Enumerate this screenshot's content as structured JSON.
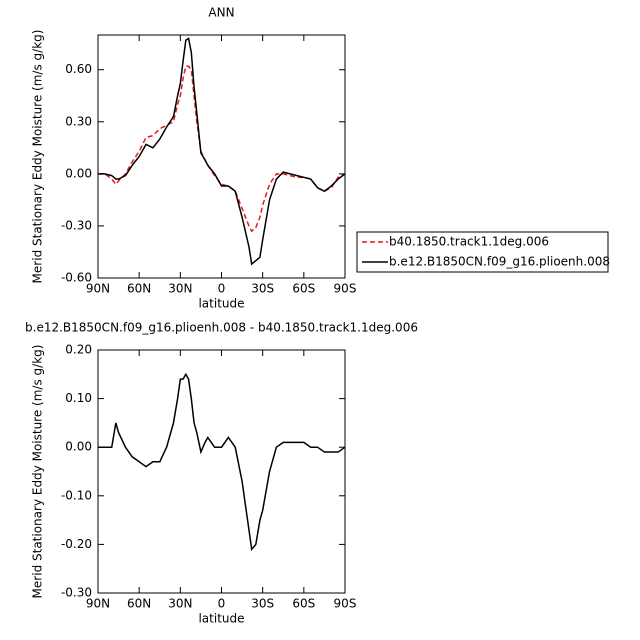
{
  "chart_data": [
    {
      "type": "line",
      "title": "ANN",
      "xlabel": "latitude",
      "ylabel": "Merid Stationary Eddy Moisture (m/s g/kg)",
      "x": [
        90,
        85,
        80,
        77,
        75,
        70,
        65,
        60,
        55,
        50,
        45,
        40,
        35,
        32,
        30,
        28,
        26,
        24,
        22,
        20,
        18,
        15,
        12,
        10,
        5,
        0,
        -5,
        -10,
        -15,
        -20,
        -22,
        -25,
        -28,
        -30,
        -35,
        -40,
        -45,
        -50,
        -55,
        -60,
        -65,
        -70,
        -75,
        -80,
        -85,
        -90
      ],
      "series": [
        {
          "name": "b40.1850.track1.1deg.006",
          "color": "#e41a1c",
          "dash": true,
          "values": [
            0,
            0,
            -0.03,
            -0.06,
            -0.04,
            0.0,
            0.07,
            0.13,
            0.21,
            0.22,
            0.26,
            0.28,
            0.3,
            0.4,
            0.45,
            0.55,
            0.62,
            0.62,
            0.6,
            0.45,
            0.3,
            0.13,
            0.08,
            0.05,
            -0.01,
            -0.06,
            -0.07,
            -0.1,
            -0.2,
            -0.3,
            -0.33,
            -0.31,
            -0.25,
            -0.18,
            -0.06,
            0.0,
            0.0,
            -0.01,
            -0.02,
            -0.02,
            -0.03,
            -0.08,
            -0.1,
            -0.08,
            -0.02,
            0.0
          ]
        },
        {
          "name": "b.e12.B1850CN.f09_g16.plioenh.008",
          "color": "#000000",
          "dash": false,
          "values": [
            0,
            0,
            -0.01,
            -0.03,
            -0.03,
            -0.01,
            0.05,
            0.1,
            0.17,
            0.15,
            0.2,
            0.27,
            0.33,
            0.45,
            0.52,
            0.65,
            0.77,
            0.78,
            0.7,
            0.5,
            0.35,
            0.12,
            0.08,
            0.05,
            0.0,
            -0.07,
            -0.07,
            -0.1,
            -0.25,
            -0.42,
            -0.52,
            -0.5,
            -0.48,
            -0.38,
            -0.15,
            -0.03,
            0.01,
            0.0,
            -0.01,
            -0.02,
            -0.03,
            -0.08,
            -0.1,
            -0.07,
            -0.03,
            0.0
          ]
        }
      ],
      "xlim": [
        90,
        -90
      ],
      "xticks": [
        {
          "value": 90,
          "label": "90N"
        },
        {
          "value": 60,
          "label": "60N"
        },
        {
          "value": 30,
          "label": "30N"
        },
        0,
        {
          "value": -30,
          "label": "30S"
        },
        {
          "value": -60,
          "label": "60S"
        },
        {
          "value": -90,
          "label": "90S"
        }
      ],
      "ylim": [
        -0.6,
        0.8
      ],
      "yticks": [
        {
          "value": -0.6,
          "label": "-0.60"
        },
        {
          "value": -0.3,
          "label": "-0.30"
        },
        {
          "value": 0,
          "label": "0.00"
        },
        {
          "value": 0.3,
          "label": "0.30"
        },
        {
          "value": 0.6,
          "label": "0.60"
        }
      ],
      "legend": "right"
    },
    {
      "type": "line",
      "title": "b.e12.B1850CN.f09_g16.plioenh.008 - b40.1850.track1.1deg.006",
      "xlabel": "latitude",
      "ylabel": "Merid Stationary Eddy Moisture (m/s g/kg)",
      "x": [
        90,
        85,
        80,
        77,
        75,
        70,
        65,
        60,
        55,
        50,
        45,
        40,
        35,
        32,
        30,
        28,
        26,
        24,
        22,
        20,
        18,
        15,
        12,
        10,
        5,
        0,
        -5,
        -10,
        -15,
        -20,
        -22,
        -25,
        -28,
        -30,
        -35,
        -40,
        -45,
        -50,
        -55,
        -60,
        -65,
        -70,
        -75,
        -80,
        -85,
        -90
      ],
      "series": [
        {
          "color": "#000000",
          "dash": false,
          "values": [
            0,
            0,
            0,
            0.05,
            0.03,
            0,
            -0.02,
            -0.03,
            -0.04,
            -0.03,
            -0.03,
            0,
            0.05,
            0.1,
            0.14,
            0.14,
            0.15,
            0.14,
            0.1,
            0.05,
            0.03,
            -0.01,
            0.01,
            0.02,
            0,
            0,
            0.02,
            0,
            -0.07,
            -0.17,
            -0.21,
            -0.2,
            -0.15,
            -0.13,
            -0.05,
            0,
            0.01,
            0.01,
            0.01,
            0.01,
            0,
            0,
            -0.01,
            -0.01,
            -0.01,
            0
          ]
        }
      ],
      "xlim": [
        90,
        -90
      ],
      "xticks": [
        {
          "value": 90,
          "label": "90N"
        },
        {
          "value": 60,
          "label": "60N"
        },
        {
          "value": 30,
          "label": "30N"
        },
        0,
        {
          "value": -30,
          "label": "30S"
        },
        {
          "value": -60,
          "label": "60S"
        },
        {
          "value": -90,
          "label": "90S"
        }
      ],
      "ylim": [
        -0.3,
        0.2
      ],
      "yticks": [
        {
          "value": -0.3,
          "label": "-0.30"
        },
        {
          "value": -0.2,
          "label": "-0.20"
        },
        {
          "value": -0.1,
          "label": "-0.10"
        },
        {
          "value": 0,
          "label": "0.00"
        },
        {
          "value": 0.1,
          "label": "0.10"
        },
        {
          "value": 0.2,
          "label": "0.20"
        }
      ]
    }
  ]
}
